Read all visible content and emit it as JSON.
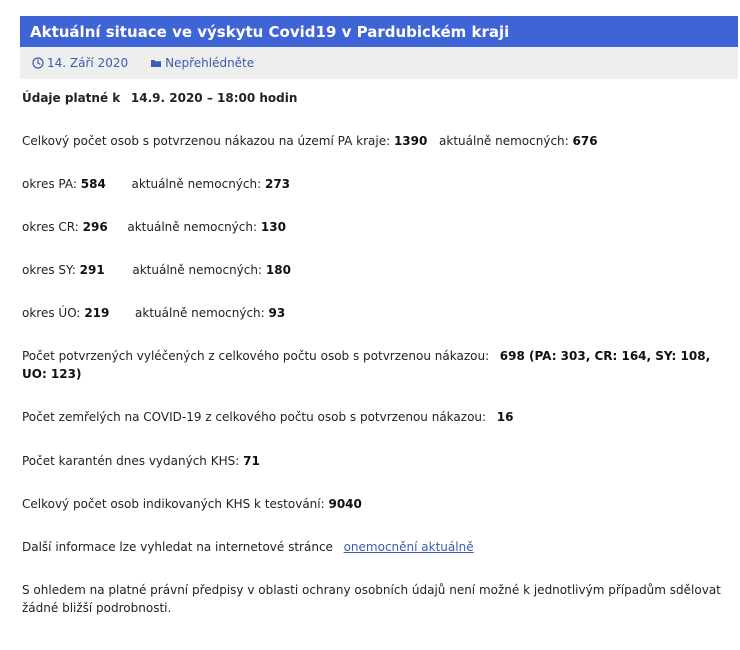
{
  "article": {
    "title": "Aktuální situace ve výskytu Covid19 v Pardubickém kraji",
    "meta": {
      "date": "14. Září 2020",
      "category": "Nepřehlédněte"
    }
  },
  "content": {
    "valid_label": "Údaje platné k",
    "valid_value": "14.9. 2020 – 18:00 hodin",
    "total": {
      "label": "Celkový počet osob s potvrzenou nákazou na území PA kraje:",
      "value": "1390",
      "active_label": "aktuálně nemocných:",
      "active_value": "676"
    },
    "districts": [
      {
        "label": "okres PA:",
        "value": "584",
        "active_label": "aktuálně nemocných:",
        "active_value": "273"
      },
      {
        "label": "okres CR:",
        "value": "296",
        "active_label": "aktuálně nemocných:",
        "active_value": "130"
      },
      {
        "label": "okres SY:",
        "value": "291",
        "active_label": "aktuálně nemocných:",
        "active_value": "180"
      },
      {
        "label": "okres ÚO:",
        "value": "219",
        "active_label": "aktuálně nemocných:",
        "active_value": "93"
      }
    ],
    "recovered": {
      "label": "Počet potvrzených vyléčených z celkového počtu osob  s potvrzenou nákazou:",
      "value": "698 (PA: 303, CR: 164, SY: 108, UO: 123)"
    },
    "deaths": {
      "label": "Počet zemřelých na COVID-19 z celkového počtu osob  s potvrzenou nákazou:",
      "value": "16"
    },
    "quarantine": {
      "label": "Počet karantén dnes vydaných KHS:",
      "value": "71"
    },
    "tested": {
      "label": "Celkový počet osob indikovaných KHS k testování:",
      "value": "9040"
    },
    "more_info": {
      "label": "Další informace lze vyhledat na internetové stránce",
      "link_text": "onemocnění aktuálně"
    },
    "privacy_note": "S ohledem na platné právní předpisy v oblasti ochrany osobních údajů není možné k jednotlivým případům sdělovat žádné bližší podrobnosti."
  },
  "icons": {
    "date": "clock-icon",
    "category": "folder-icon"
  },
  "colors": {
    "title_bar": "#3f64d6",
    "meta_bar": "#eeeeee",
    "link": "#3d5cb0"
  }
}
